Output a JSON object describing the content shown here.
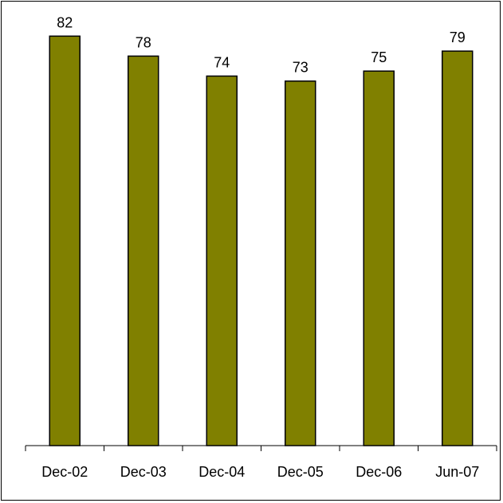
{
  "chart_data": {
    "type": "bar",
    "title": "",
    "xlabel": "",
    "ylabel": "",
    "categories": [
      "Dec-02",
      "Dec-03",
      "Dec-04",
      "Dec-05",
      "Dec-06",
      "Jun-07"
    ],
    "values": [
      82,
      78,
      74,
      73,
      75,
      79
    ],
    "data_labels": [
      "82",
      "78",
      "74",
      "73",
      "75",
      "79"
    ],
    "ylim": [
      0,
      87
    ],
    "grid": false,
    "legend": "none",
    "bar_color": "#808000",
    "bar_outline_color": "#000000"
  }
}
